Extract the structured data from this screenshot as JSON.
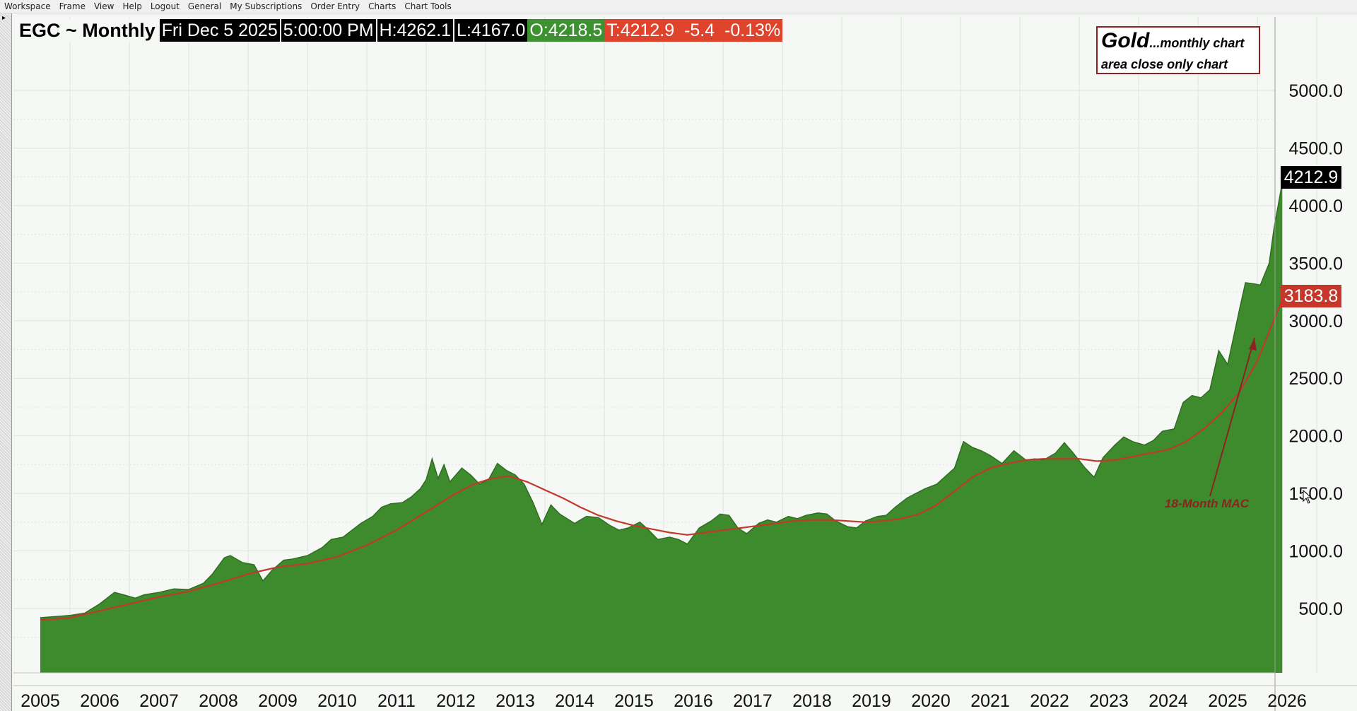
{
  "menu": [
    "Workspace",
    "Frame",
    "View",
    "Help",
    "Logout",
    "General",
    "My Subscriptions",
    "Order Entry",
    "Charts",
    "Chart Tools"
  ],
  "header": {
    "symbol": "EGC ~ Monthly",
    "date": "Fri Dec 5 2025",
    "time": "5:00:00 PM",
    "high": "H:4262.1",
    "low": "L:4167.0",
    "open": "O:4218.5",
    "trade": "T:4212.9",
    "change": "-5.4",
    "change_pct": "-0.13%"
  },
  "legend": {
    "title": "Gold",
    "subtitle_line1": "...monthly chart",
    "subtitle_line2": "area close only chart"
  },
  "annotation": {
    "label": "18-Month MAC"
  },
  "last_price_tag": "4212.9",
  "mac_price_tag": "3183.8",
  "colors": {
    "area_fill": "#3d8b2c",
    "area_edge": "#2f6e22",
    "mac_line": "#c0392b",
    "annotation": "#8b2323",
    "grid": "#dde3dd"
  },
  "chart_data": {
    "type": "area",
    "x_tick_labels": [
      "2005",
      "2006",
      "2007",
      "2008",
      "2009",
      "2010",
      "2011",
      "2012",
      "2013",
      "2014",
      "2015",
      "2016",
      "2017",
      "2018",
      "2019",
      "2020",
      "2021",
      "2022",
      "2023",
      "2024",
      "2025",
      "2026"
    ],
    "y_tick_labels": [
      "500.0",
      "1000.0",
      "1500.0",
      "2000.0",
      "2500.0",
      "3000.0",
      "3500.0",
      "4000.0",
      "4500.0",
      "5000.0"
    ],
    "ylim": [
      0,
      5500
    ],
    "xlim": [
      2004.95,
      2026.5
    ],
    "grid": true,
    "series": [
      {
        "type": "area",
        "x": [
          2005.0,
          2005.25,
          2005.5,
          2005.75,
          2006.0,
          2006.25,
          2006.4,
          2006.6,
          2006.75,
          2007.0,
          2007.25,
          2007.5,
          2007.75,
          2007.9,
          2008.1,
          2008.2,
          2008.4,
          2008.6,
          2008.75,
          2008.9,
          2009.1,
          2009.25,
          2009.5,
          2009.75,
          2009.9,
          2010.1,
          2010.25,
          2010.4,
          2010.6,
          2010.75,
          2010.9,
          2011.1,
          2011.25,
          2011.4,
          2011.5,
          2011.6,
          2011.7,
          2011.8,
          2011.9,
          2012.1,
          2012.25,
          2012.4,
          2012.55,
          2012.7,
          2012.85,
          2013.0,
          2013.15,
          2013.3,
          2013.45,
          2013.6,
          2013.75,
          2014.0,
          2014.2,
          2014.4,
          2014.6,
          2014.75,
          2014.9,
          2015.1,
          2015.25,
          2015.4,
          2015.6,
          2015.75,
          2015.9,
          2016.1,
          2016.3,
          2016.45,
          2016.6,
          2016.75,
          2016.9,
          2017.1,
          2017.25,
          2017.4,
          2017.6,
          2017.75,
          2017.9,
          2018.1,
          2018.25,
          2018.4,
          2018.6,
          2018.75,
          2018.9,
          2019.1,
          2019.25,
          2019.4,
          2019.6,
          2019.75,
          2019.9,
          2020.1,
          2020.25,
          2020.4,
          2020.55,
          2020.7,
          2020.85,
          2021.0,
          2021.2,
          2021.4,
          2021.6,
          2021.75,
          2021.9,
          2022.1,
          2022.25,
          2022.4,
          2022.6,
          2022.75,
          2022.9,
          2023.1,
          2023.25,
          2023.4,
          2023.6,
          2023.75,
          2023.9,
          2024.1,
          2024.25,
          2024.4,
          2024.55,
          2024.7,
          2024.85,
          2025.0,
          2025.1,
          2025.2,
          2025.3,
          2025.45,
          2025.55,
          2025.7,
          2025.78,
          2025.85,
          2025.92
        ],
        "y": [
          420,
          430,
          440,
          460,
          540,
          640,
          620,
          590,
          620,
          640,
          670,
          665,
          720,
          800,
          940,
          960,
          900,
          880,
          740,
          830,
          920,
          930,
          960,
          1030,
          1100,
          1120,
          1180,
          1240,
          1300,
          1380,
          1410,
          1420,
          1470,
          1540,
          1620,
          1800,
          1630,
          1750,
          1600,
          1720,
          1660,
          1580,
          1620,
          1760,
          1700,
          1660,
          1580,
          1420,
          1230,
          1400,
          1320,
          1240,
          1300,
          1290,
          1220,
          1180,
          1200,
          1250,
          1180,
          1100,
          1120,
          1100,
          1060,
          1200,
          1260,
          1320,
          1310,
          1200,
          1150,
          1240,
          1270,
          1250,
          1300,
          1280,
          1310,
          1330,
          1320,
          1260,
          1210,
          1200,
          1260,
          1300,
          1310,
          1380,
          1460,
          1500,
          1540,
          1580,
          1650,
          1720,
          1950,
          1900,
          1870,
          1830,
          1760,
          1870,
          1790,
          1800,
          1790,
          1850,
          1940,
          1850,
          1720,
          1640,
          1810,
          1920,
          1990,
          1950,
          1920,
          1960,
          2040,
          2060,
          2290,
          2350,
          2330,
          2400,
          2740,
          2620,
          2860,
          3100,
          3330,
          3320,
          3310,
          3500,
          3800,
          4000,
          4200
        ]
      },
      {
        "name": "18-Month MAC",
        "type": "line",
        "x": [
          2005.0,
          2005.5,
          2006.0,
          2006.5,
          2007.0,
          2007.5,
          2008.0,
          2008.5,
          2009.0,
          2009.5,
          2010.0,
          2010.5,
          2011.0,
          2011.5,
          2012.0,
          2012.3,
          2012.6,
          2012.9,
          2013.2,
          2013.5,
          2013.8,
          2014.1,
          2014.4,
          2014.7,
          2015.0,
          2015.3,
          2015.6,
          2015.9,
          2016.2,
          2016.5,
          2016.8,
          2017.1,
          2017.4,
          2017.7,
          2018.0,
          2018.3,
          2018.6,
          2018.9,
          2019.2,
          2019.5,
          2019.8,
          2020.1,
          2020.4,
          2020.7,
          2021.0,
          2021.3,
          2021.6,
          2021.9,
          2022.2,
          2022.5,
          2022.8,
          2023.1,
          2023.4,
          2023.7,
          2024.0,
          2024.3,
          2024.6,
          2024.9,
          2025.2,
          2025.5,
          2025.92
        ],
        "y": [
          400,
          420,
          480,
          540,
          600,
          650,
          720,
          800,
          860,
          890,
          950,
          1050,
          1180,
          1340,
          1500,
          1580,
          1630,
          1650,
          1600,
          1530,
          1460,
          1380,
          1310,
          1260,
          1220,
          1190,
          1160,
          1140,
          1160,
          1180,
          1200,
          1220,
          1240,
          1260,
          1270,
          1270,
          1260,
          1250,
          1260,
          1280,
          1320,
          1400,
          1520,
          1640,
          1720,
          1760,
          1790,
          1800,
          1800,
          1800,
          1780,
          1790,
          1820,
          1850,
          1880,
          1950,
          2060,
          2200,
          2380,
          2650,
          3183.8
        ]
      }
    ]
  }
}
